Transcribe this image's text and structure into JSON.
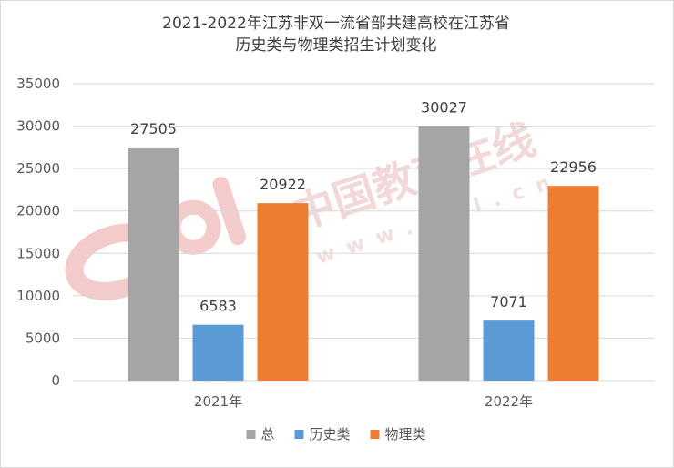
{
  "chart_data": {
    "type": "bar",
    "title_line1": "2021-2022年江苏非双一流省部共建高校在江苏省",
    "title_line2": "历史类与物理类招生计划变化",
    "categories": [
      "2021年",
      "2022年"
    ],
    "series": [
      {
        "name": "总",
        "color": "#a5a5a5",
        "values": [
          27505,
          30027
        ]
      },
      {
        "name": "历史类",
        "color": "#5b9bd5",
        "values": [
          6583,
          7071
        ]
      },
      {
        "name": "物理类",
        "color": "#ed7d31",
        "values": [
          20922,
          22956
        ]
      }
    ],
    "ylim": [
      0,
      35000
    ],
    "yticks": [
      0,
      5000,
      10000,
      15000,
      20000,
      25000,
      30000,
      35000
    ],
    "grid": true,
    "legend": "bottom"
  },
  "watermark": {
    "text": "中国教育在线",
    "url": "www.eol.cn"
  }
}
